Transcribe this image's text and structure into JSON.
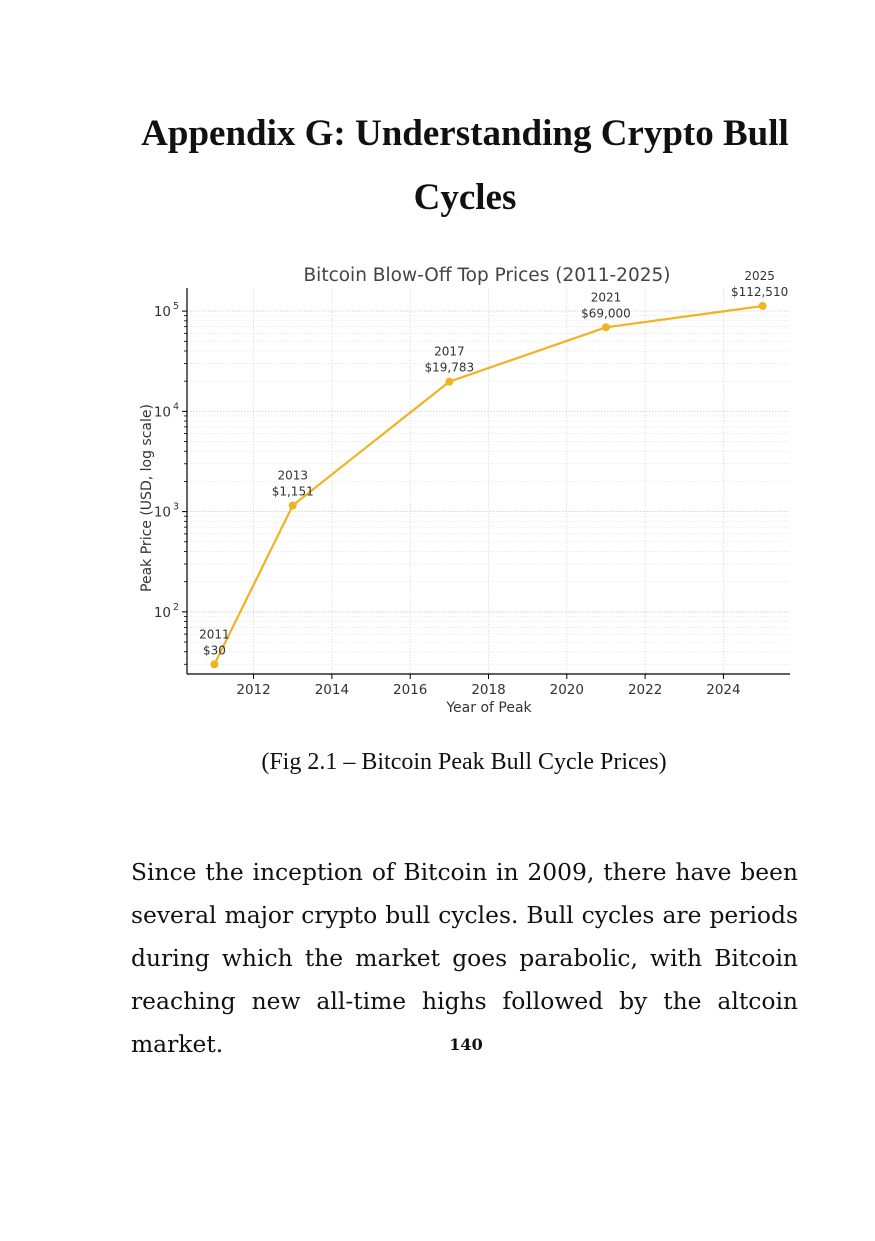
{
  "page": {
    "heading_line_1": "Appendix G: Understanding Crypto Bull",
    "heading_line_2": "Cycles",
    "caption": "(Fig 2.1 – Bitcoin Peak Bull Cycle Prices)",
    "body": "Since the inception of Bitcoin in 2009, there have been several major crypto bull cycles. Bull cycles are periods during which the market goes parabolic, with Bitcoin reaching new all-time highs followed by the altcoin market.",
    "page_number": "140"
  },
  "chart_data": {
    "type": "line",
    "title": "Bitcoin Blow-Off Top Prices (2011-2025)",
    "xlabel": "Year of Peak",
    "ylabel": "Peak Price (USD, log scale)",
    "y_scale": "log",
    "grid": true,
    "series_color": "#f0b323",
    "xlim": [
      2010.3,
      2025.7
    ],
    "ylim": [
      24,
      170000
    ],
    "x_ticks": [
      2012,
      2014,
      2016,
      2018,
      2020,
      2022,
      2024
    ],
    "x_tick_labels": [
      "2012",
      "2014",
      "2016",
      "2018",
      "2020",
      "2022",
      "2024"
    ],
    "y_ticks": [
      100,
      1000,
      10000,
      100000
    ],
    "y_tick_labels": [
      {
        "base": "10",
        "exp": "2"
      },
      {
        "base": "10",
        "exp": "3"
      },
      {
        "base": "10",
        "exp": "4"
      },
      {
        "base": "10",
        "exp": "5"
      }
    ],
    "x": [
      2011,
      2013,
      2017,
      2021,
      2025
    ],
    "y": [
      30,
      1151,
      19783,
      69000,
      112510
    ],
    "point_labels": [
      {
        "year": "2011",
        "price": "$30"
      },
      {
        "year": "2013",
        "price": "$1,151"
      },
      {
        "year": "2017",
        "price": "$19,783"
      },
      {
        "year": "2021",
        "price": "$69,000"
      },
      {
        "year": "2025",
        "price": "$112,510"
      }
    ]
  }
}
